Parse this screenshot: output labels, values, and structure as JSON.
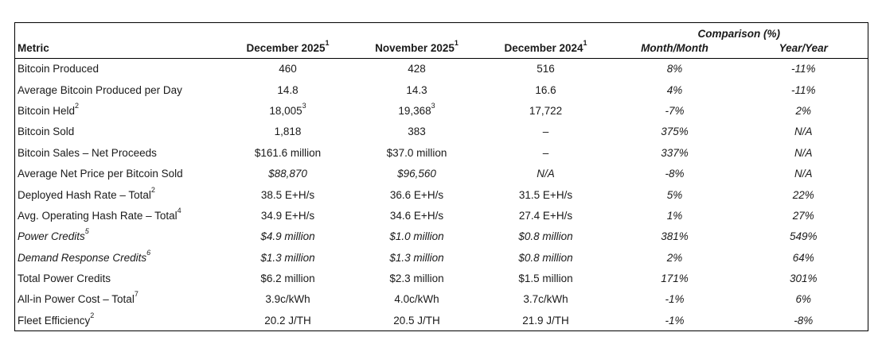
{
  "colors": {
    "background": "#ffffff",
    "text": "#1a1a1a",
    "border": "#000000"
  },
  "table": {
    "comparison_header": "Comparison (%)",
    "columns": [
      {
        "label": "Metric",
        "sup": ""
      },
      {
        "label": "December 2025",
        "sup": "1"
      },
      {
        "label": "November 2025",
        "sup": "1"
      },
      {
        "label": "December 2024",
        "sup": "1"
      },
      {
        "label": "Month/Month",
        "sup": ""
      },
      {
        "label": "Year/Year",
        "sup": ""
      }
    ],
    "rows": [
      {
        "metric": {
          "text": "Bitcoin Produced",
          "sup": "",
          "italic": false,
          "indent": false
        },
        "cells": [
          {
            "text": "460",
            "sup": "",
            "italic": false
          },
          {
            "text": "428",
            "sup": "",
            "italic": false
          },
          {
            "text": "516",
            "sup": "",
            "italic": false
          },
          {
            "text": "8%",
            "sup": "",
            "italic": true
          },
          {
            "text": "-11%",
            "sup": "",
            "italic": true
          }
        ]
      },
      {
        "metric": {
          "text": "Average Bitcoin Produced per Day",
          "sup": "",
          "italic": false,
          "indent": false
        },
        "cells": [
          {
            "text": "14.8",
            "sup": "",
            "italic": false
          },
          {
            "text": "14.3",
            "sup": "",
            "italic": false
          },
          {
            "text": "16.6",
            "sup": "",
            "italic": false
          },
          {
            "text": "4%",
            "sup": "",
            "italic": true
          },
          {
            "text": "-11%",
            "sup": "",
            "italic": true
          }
        ]
      },
      {
        "metric": {
          "text": "Bitcoin Held",
          "sup": "2",
          "italic": false,
          "indent": false
        },
        "cells": [
          {
            "text": "18,005",
            "sup": "3",
            "italic": false
          },
          {
            "text": "19,368",
            "sup": "3",
            "italic": false
          },
          {
            "text": "17,722",
            "sup": "",
            "italic": false
          },
          {
            "text": "-7%",
            "sup": "",
            "italic": true
          },
          {
            "text": "2%",
            "sup": "",
            "italic": true
          }
        ]
      },
      {
        "metric": {
          "text": "Bitcoin Sold",
          "sup": "",
          "italic": false,
          "indent": false
        },
        "cells": [
          {
            "text": "1,818",
            "sup": "",
            "italic": false
          },
          {
            "text": "383",
            "sup": "",
            "italic": false
          },
          {
            "text": "–",
            "sup": "",
            "italic": false
          },
          {
            "text": "375%",
            "sup": "",
            "italic": true
          },
          {
            "text": "N/A",
            "sup": "",
            "italic": true
          }
        ]
      },
      {
        "metric": {
          "text": "Bitcoin Sales – Net Proceeds",
          "sup": "",
          "italic": false,
          "indent": false
        },
        "cells": [
          {
            "text": "$161.6 million",
            "sup": "",
            "italic": false
          },
          {
            "text": "$37.0 million",
            "sup": "",
            "italic": false
          },
          {
            "text": "–",
            "sup": "",
            "italic": false
          },
          {
            "text": "337%",
            "sup": "",
            "italic": true
          },
          {
            "text": "N/A",
            "sup": "",
            "italic": true
          }
        ]
      },
      {
        "metric": {
          "text": "Average Net Price per Bitcoin Sold",
          "sup": "",
          "italic": false,
          "indent": false
        },
        "cells": [
          {
            "text": "$88,870",
            "sup": "",
            "italic": true
          },
          {
            "text": "$96,560",
            "sup": "",
            "italic": true
          },
          {
            "text": "N/A",
            "sup": "",
            "italic": true
          },
          {
            "text": "-8%",
            "sup": "",
            "italic": true
          },
          {
            "text": "N/A",
            "sup": "",
            "italic": true
          }
        ]
      },
      {
        "metric": {
          "text": "Deployed Hash Rate – Total",
          "sup": "2",
          "italic": false,
          "indent": false
        },
        "cells": [
          {
            "text": "38.5 E+H/s",
            "sup": "",
            "italic": false
          },
          {
            "text": "36.6 E+H/s",
            "sup": "",
            "italic": false
          },
          {
            "text": "31.5 E+H/s",
            "sup": "",
            "italic": false
          },
          {
            "text": "5%",
            "sup": "",
            "italic": true
          },
          {
            "text": "22%",
            "sup": "",
            "italic": true
          }
        ]
      },
      {
        "metric": {
          "text": "Avg. Operating Hash Rate – Total",
          "sup": "4",
          "italic": false,
          "indent": false
        },
        "cells": [
          {
            "text": "34.9 E+H/s",
            "sup": "",
            "italic": false
          },
          {
            "text": "34.6 E+H/s",
            "sup": "",
            "italic": false
          },
          {
            "text": "27.4 E+H/s",
            "sup": "",
            "italic": false
          },
          {
            "text": "1%",
            "sup": "",
            "italic": true
          },
          {
            "text": "27%",
            "sup": "",
            "italic": true
          }
        ]
      },
      {
        "metric": {
          "text": "Power Credits",
          "sup": "5",
          "italic": true,
          "indent": true
        },
        "cells": [
          {
            "text": "$4.9 million",
            "sup": "",
            "italic": true
          },
          {
            "text": "$1.0 million",
            "sup": "",
            "italic": true
          },
          {
            "text": "$0.8 million",
            "sup": "",
            "italic": true
          },
          {
            "text": "381%",
            "sup": "",
            "italic": true
          },
          {
            "text": "549%",
            "sup": "",
            "italic": true
          }
        ]
      },
      {
        "metric": {
          "text": "Demand Response Credits",
          "sup": "6",
          "italic": true,
          "indent": true
        },
        "cells": [
          {
            "text": "$1.3 million",
            "sup": "",
            "italic": true
          },
          {
            "text": "$1.3 million",
            "sup": "",
            "italic": true
          },
          {
            "text": "$0.8 million",
            "sup": "",
            "italic": true
          },
          {
            "text": "2%",
            "sup": "",
            "italic": true
          },
          {
            "text": "64%",
            "sup": "",
            "italic": true
          }
        ]
      },
      {
        "metric": {
          "text": "Total Power Credits",
          "sup": "",
          "italic": false,
          "indent": false
        },
        "cells": [
          {
            "text": "$6.2 million",
            "sup": "",
            "italic": false
          },
          {
            "text": "$2.3 million",
            "sup": "",
            "italic": false
          },
          {
            "text": "$1.5 million",
            "sup": "",
            "italic": false
          },
          {
            "text": "171%",
            "sup": "",
            "italic": true
          },
          {
            "text": "301%",
            "sup": "",
            "italic": true
          }
        ]
      },
      {
        "metric": {
          "text": "All-in Power Cost – Total",
          "sup": "7",
          "italic": false,
          "indent": false
        },
        "cells": [
          {
            "text": "3.9c/kWh",
            "sup": "",
            "italic": false
          },
          {
            "text": "4.0c/kWh",
            "sup": "",
            "italic": false
          },
          {
            "text": "3.7c/kWh",
            "sup": "",
            "italic": false
          },
          {
            "text": "-1%",
            "sup": "",
            "italic": true
          },
          {
            "text": "6%",
            "sup": "",
            "italic": true
          }
        ]
      },
      {
        "metric": {
          "text": "Fleet Efficiency",
          "sup": "2",
          "italic": false,
          "indent": false
        },
        "cells": [
          {
            "text": "20.2 J/TH",
            "sup": "",
            "italic": false
          },
          {
            "text": "20.5 J/TH",
            "sup": "",
            "italic": false
          },
          {
            "text": "21.9 J/TH",
            "sup": "",
            "italic": false
          },
          {
            "text": "-1%",
            "sup": "",
            "italic": true
          },
          {
            "text": "-8%",
            "sup": "",
            "italic": true
          }
        ]
      }
    ]
  }
}
